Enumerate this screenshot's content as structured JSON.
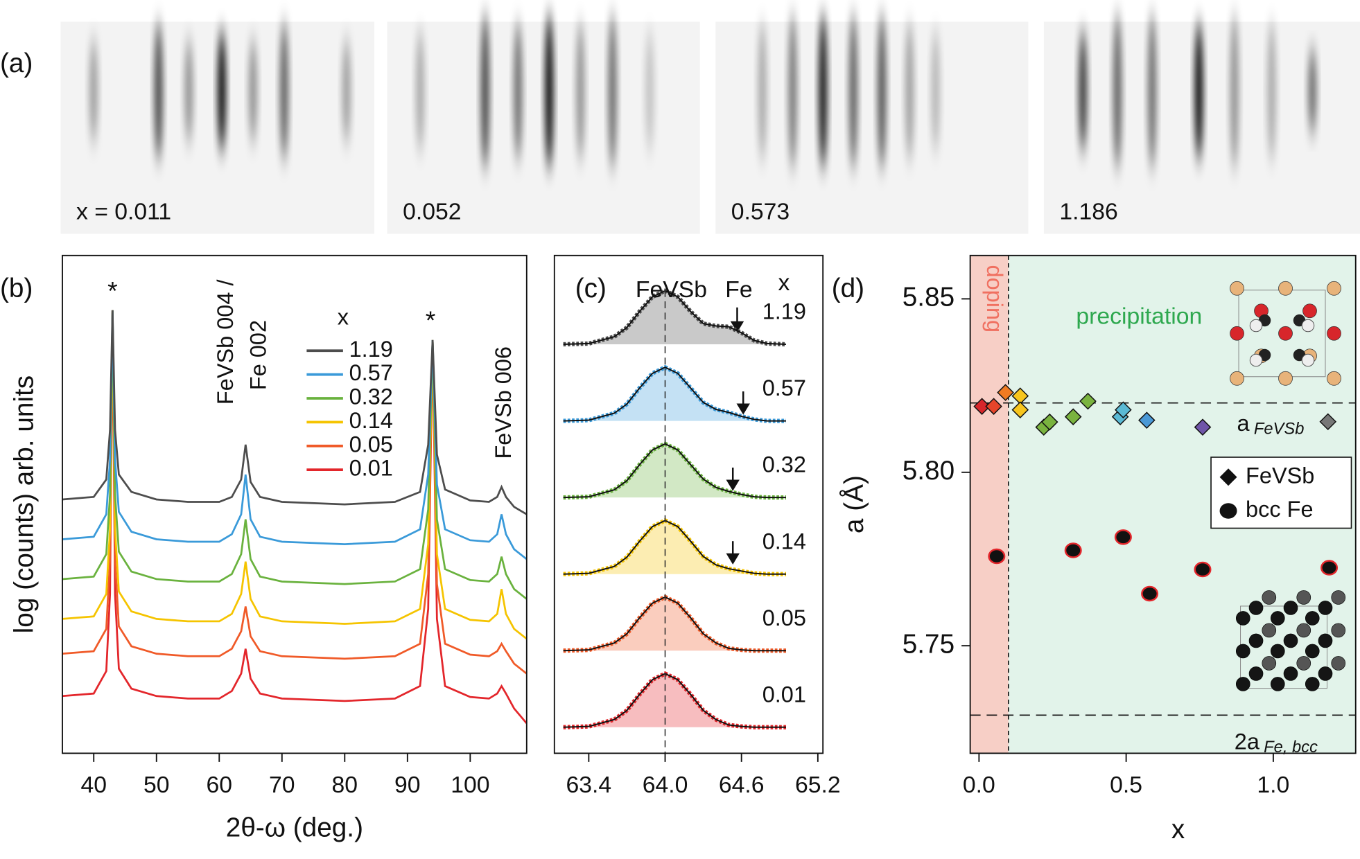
{
  "panel_labels": [
    "(a)",
    "(b)",
    "(c)",
    "(d)"
  ],
  "rheed": {
    "labels": [
      "x = 0.011",
      "0.052",
      "0.573",
      "1.186"
    ]
  },
  "chart_data": [
    {
      "type": "line",
      "xlabel": "2θ-ω (deg.)",
      "ylabel": "log (counts) arb. units",
      "xlim": [
        35,
        109
      ],
      "xticks": [
        40,
        50,
        60,
        70,
        80,
        90,
        100
      ],
      "ylim": [
        0,
        10
      ],
      "legend_title": "x",
      "annotations": [
        "*",
        "*",
        "FeVSb 004 /",
        "Fe 002",
        "FeVSb 006"
      ],
      "x": [
        35,
        40,
        42,
        42.6,
        43,
        43.4,
        44,
        46,
        50,
        55,
        60,
        62,
        63.5,
        64.2,
        65,
        66.5,
        70,
        80,
        88,
        92,
        93.3,
        94,
        94.7,
        96,
        100,
        103,
        104.3,
        105,
        105.7,
        107,
        109
      ],
      "series": [
        {
          "name": "1.19",
          "color": "#4d4d4d",
          "values": [
            5.1,
            5.15,
            5.5,
            6.5,
            8.9,
            6.5,
            5.6,
            5.25,
            5.1,
            5.05,
            5.05,
            5.15,
            5.5,
            6.2,
            5.45,
            5.15,
            5.05,
            5.0,
            5.05,
            5.25,
            6.2,
            8.3,
            6.0,
            5.3,
            5.08,
            5.05,
            5.15,
            5.35,
            5.15,
            4.95,
            4.8
          ]
        },
        {
          "name": "0.57",
          "color": "#3a9ad9",
          "values": [
            4.3,
            4.35,
            4.8,
            5.9,
            8.9,
            5.9,
            4.85,
            4.45,
            4.3,
            4.25,
            4.25,
            4.4,
            4.8,
            5.6,
            4.7,
            4.35,
            4.25,
            4.2,
            4.25,
            4.5,
            5.6,
            8.3,
            5.4,
            4.5,
            4.28,
            4.25,
            4.4,
            4.8,
            4.4,
            4.1,
            3.9
          ]
        },
        {
          "name": "0.32",
          "color": "#6ab23e",
          "values": [
            3.5,
            3.55,
            4.0,
            5.2,
            8.9,
            5.2,
            4.05,
            3.65,
            3.5,
            3.45,
            3.45,
            3.6,
            4.0,
            4.7,
            3.9,
            3.55,
            3.45,
            3.4,
            3.45,
            3.7,
            4.9,
            8.3,
            4.7,
            3.7,
            3.48,
            3.45,
            3.6,
            3.95,
            3.6,
            3.3,
            3.1
          ]
        },
        {
          "name": "0.14",
          "color": "#f5c400",
          "values": [
            2.7,
            2.75,
            3.2,
            4.5,
            8.9,
            4.5,
            3.25,
            2.85,
            2.7,
            2.65,
            2.65,
            2.8,
            3.2,
            3.85,
            3.1,
            2.75,
            2.65,
            2.6,
            2.65,
            2.9,
            4.2,
            8.3,
            4.0,
            2.9,
            2.68,
            2.65,
            2.8,
            3.3,
            2.8,
            2.5,
            2.3
          ]
        },
        {
          "name": "0.05",
          "color": "#f05a28",
          "values": [
            2.0,
            2.05,
            2.5,
            3.9,
            8.9,
            3.9,
            2.55,
            2.15,
            2.0,
            1.95,
            1.95,
            2.1,
            2.45,
            2.95,
            2.35,
            2.05,
            1.95,
            1.9,
            1.95,
            2.2,
            3.6,
            8.3,
            3.4,
            2.2,
            1.98,
            1.95,
            2.05,
            2.2,
            2.05,
            1.8,
            1.6
          ]
        },
        {
          "name": "0.01",
          "color": "#e3262b",
          "values": [
            1.15,
            1.2,
            1.65,
            3.2,
            8.9,
            3.2,
            1.7,
            1.3,
            1.15,
            1.1,
            1.1,
            1.25,
            1.6,
            2.1,
            1.5,
            1.2,
            1.1,
            1.05,
            1.1,
            1.35,
            2.9,
            8.3,
            2.7,
            1.35,
            1.13,
            1.1,
            1.2,
            1.35,
            1.2,
            0.9,
            0.6
          ]
        }
      ]
    },
    {
      "type": "line",
      "xlim": [
        63.13,
        65.24
      ],
      "xticks": [
        63.4,
        {
          "value": 64,
          "label": "64.0"
        },
        64.6,
        65.2
      ],
      "ylim": [
        0,
        6.5
      ],
      "reference_x": 64,
      "peak_labels": [
        "FeVSb",
        "Fe"
      ],
      "legend_title": "x",
      "x": [
        63.2,
        63.4,
        63.6,
        63.7,
        63.8,
        63.9,
        64.0,
        64.1,
        64.2,
        64.3,
        64.4,
        64.5,
        64.6,
        64.7,
        64.8,
        64.95
      ],
      "series": [
        {
          "name": "1.19",
          "color": "#4d4d4d",
          "values": [
            5.34,
            5.35,
            5.44,
            5.56,
            5.77,
            5.96,
            6.04,
            5.96,
            5.77,
            5.61,
            5.58,
            5.57,
            5.49,
            5.39,
            5.35,
            5.34
          ]
        },
        {
          "name": "0.57",
          "color": "#3a9ad9",
          "values": [
            4.34,
            4.35,
            4.44,
            4.56,
            4.77,
            4.96,
            5.04,
            4.96,
            4.77,
            4.58,
            4.49,
            4.45,
            4.4,
            4.36,
            4.34,
            4.34
          ]
        },
        {
          "name": "0.32",
          "color": "#6ab23e",
          "values": [
            3.34,
            3.35,
            3.44,
            3.56,
            3.77,
            3.96,
            4.04,
            3.96,
            3.77,
            3.58,
            3.47,
            3.42,
            3.38,
            3.35,
            3.34,
            3.34
          ]
        },
        {
          "name": "0.14",
          "color": "#f5c400",
          "values": [
            2.34,
            2.35,
            2.44,
            2.56,
            2.77,
            2.96,
            3.04,
            2.96,
            2.77,
            2.57,
            2.46,
            2.41,
            2.38,
            2.35,
            2.34,
            2.34
          ]
        },
        {
          "name": "0.05",
          "color": "#f05a28",
          "values": [
            1.34,
            1.35,
            1.44,
            1.56,
            1.77,
            1.96,
            2.04,
            1.96,
            1.77,
            1.56,
            1.44,
            1.37,
            1.35,
            1.34,
            1.34,
            1.34
          ]
        },
        {
          "name": "0.01",
          "color": "#e3262b",
          "values": [
            0.34,
            0.35,
            0.44,
            0.56,
            0.77,
            0.96,
            1.04,
            0.96,
            0.77,
            0.56,
            0.44,
            0.37,
            0.35,
            0.34,
            0.34,
            0.34
          ]
        }
      ]
    },
    {
      "type": "scatter",
      "xlabel": "x",
      "ylabel": "a (Å)",
      "xlim": [
        -0.03,
        1.28
      ],
      "xticks": [
        {
          "value": 0,
          "label": "0.0"
        },
        0.5,
        {
          "value": 1,
          "label": "1.0"
        }
      ],
      "ylim": [
        5.719,
        5.8625
      ],
      "yticks": [
        5.75,
        {
          "value": 5.8,
          "label": "5.80"
        },
        5.85
      ],
      "boundary_x": 0.1,
      "regions": [
        {
          "label": "doping",
          "color": "#f7cfc6"
        },
        {
          "label": "precipitation",
          "color": "#e2f3ea"
        }
      ],
      "reference_lines": [
        {
          "label": "a",
          "sub": "FeVSb",
          "y": 5.82
        },
        {
          "label": "2a",
          "sub": "Fe, bcc",
          "y": 5.73
        }
      ],
      "series": [
        {
          "name": "FeVSb",
          "marker": "diamond",
          "x": [
            0.01,
            0.05,
            0.09,
            0.14,
            0.14,
            0.22,
            0.24,
            0.32,
            0.37,
            0.48,
            0.49,
            0.57,
            0.76
          ],
          "y": [
            5.819,
            5.819,
            5.823,
            5.822,
            5.818,
            5.813,
            5.8145,
            5.816,
            5.8205,
            5.816,
            5.818,
            5.815,
            5.813
          ],
          "colors": [
            "#d7262b",
            "#e6452a",
            "#f07b22",
            "#f7c51e",
            "#f7c51e",
            "#7ab33f",
            "#7ab33f",
            "#7ab33f",
            "#7ab33f",
            "#5bbad5",
            "#5bbad5",
            "#4a98d6",
            "#6f55a8"
          ]
        },
        {
          "name": "bcc Fe",
          "marker": "circle",
          "color": "#111111",
          "edgecolor": "#e3262b",
          "x": [
            0.06,
            0.32,
            0.49,
            0.58,
            0.76,
            1.19
          ],
          "y": [
            5.7758,
            5.7775,
            5.7813,
            5.765,
            5.772,
            5.7725
          ]
        }
      ]
    }
  ]
}
